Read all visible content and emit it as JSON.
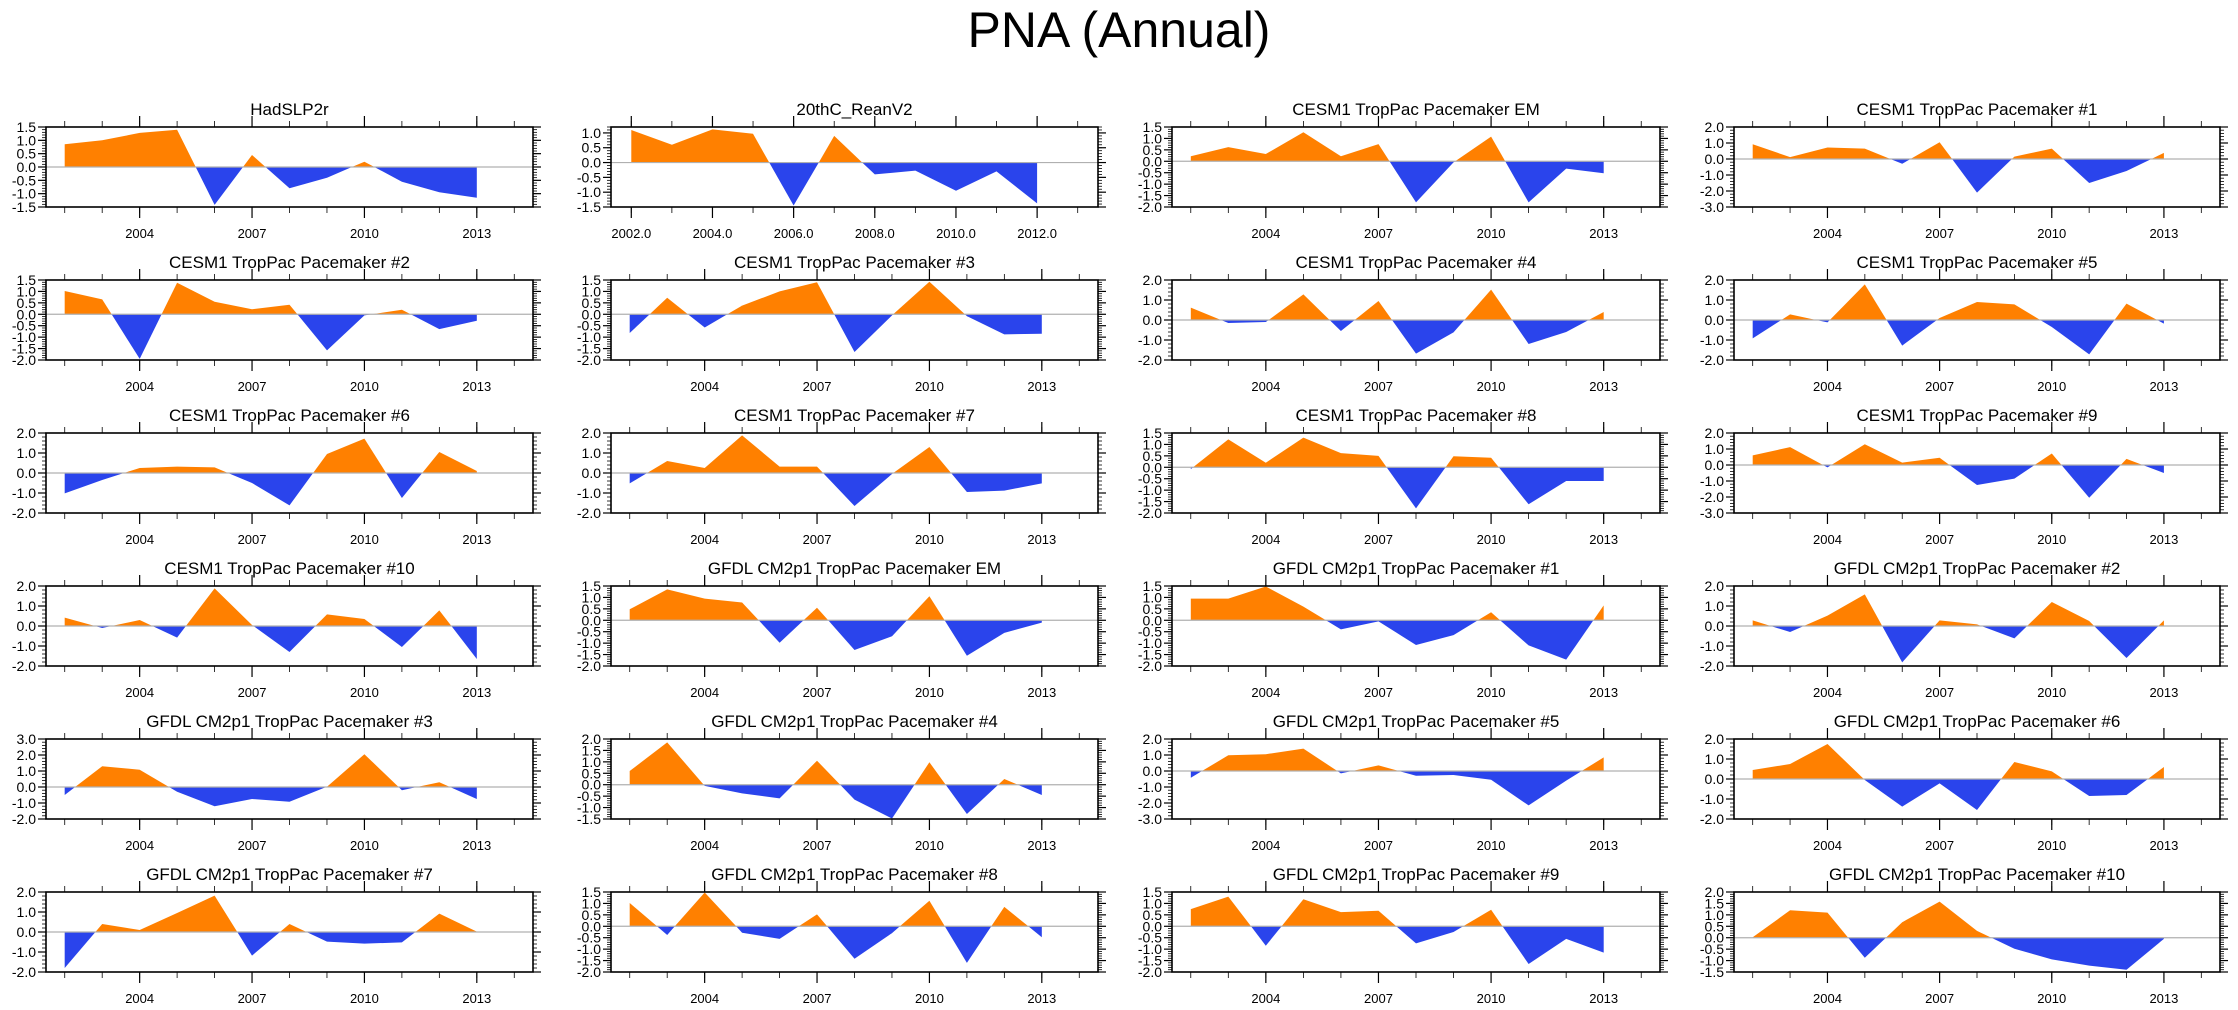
{
  "title": "PNA (Annual)",
  "colors": {
    "positive": "#ff8000",
    "negative": "#2a44ec",
    "zero_line": "#b0b0b0",
    "axis": "#000000"
  },
  "chart_data": [
    {
      "type": "area",
      "title": "HadSLP2r",
      "x": [
        2002,
        2003,
        2004,
        2005,
        2006,
        2007,
        2008,
        2009,
        2010,
        2011,
        2012,
        2013
      ],
      "values": [
        0.85,
        1.0,
        1.28,
        1.4,
        -1.42,
        0.45,
        -0.8,
        -0.4,
        0.2,
        -0.55,
        -0.95,
        -1.15
      ],
      "ylim": [
        -1.5,
        1.5
      ],
      "yticks": [
        "1.5",
        "1.0",
        "0.5",
        "0.0",
        "-0.5",
        "-1.0",
        "-1.5"
      ],
      "xlim": [
        2001.5,
        2014.5
      ],
      "xticks": [
        "2004",
        "2007",
        "2010",
        "2013"
      ]
    },
    {
      "type": "area",
      "title": "20thC_ReanV2",
      "x": [
        2002,
        2003,
        2004,
        2005,
        2006,
        2007,
        2008,
        2009,
        2010,
        2011,
        2012
      ],
      "values": [
        1.1,
        0.6,
        1.12,
        0.97,
        -1.45,
        0.9,
        -0.4,
        -0.27,
        -0.95,
        -0.3,
        -1.38
      ],
      "ylim": [
        -1.5,
        1.2
      ],
      "yticks": [
        "1.0",
        "0.5",
        "0.0",
        "-0.5",
        "-1.0",
        "-1.5"
      ],
      "xlim": [
        2001.5,
        2013.5
      ],
      "xticks": [
        "2002.0",
        "2004.0",
        "2006.0",
        "2008.0",
        "2010.0",
        "2012.0"
      ]
    },
    {
      "type": "area",
      "title": "CESM1 TropPac Pacemaker EM",
      "x": [
        2002,
        2003,
        2004,
        2005,
        2006,
        2007,
        2008,
        2009,
        2010,
        2011,
        2012,
        2013
      ],
      "values": [
        0.22,
        0.62,
        0.32,
        1.27,
        0.22,
        0.75,
        -1.8,
        -0.05,
        1.08,
        -1.8,
        -0.32,
        -0.52
      ],
      "ylim": [
        -2.0,
        1.5
      ],
      "yticks": [
        "1.5",
        "1.0",
        "0.5",
        "0.0",
        "-0.5",
        "-1.0",
        "-1.5",
        "-2.0"
      ],
      "xlim": [
        2001.5,
        2014.5
      ],
      "xticks": [
        "2004",
        "2007",
        "2010",
        "2013"
      ]
    },
    {
      "type": "area",
      "title": "CESM1 TropPac Pacemaker #1",
      "x": [
        2002,
        2003,
        2004,
        2005,
        2006,
        2007,
        2008,
        2009,
        2010,
        2011,
        2012,
        2013
      ],
      "values": [
        0.92,
        0.12,
        0.72,
        0.65,
        -0.3,
        1.05,
        -2.1,
        0.15,
        0.65,
        -1.5,
        -0.75,
        0.38
      ],
      "ylim": [
        -3.0,
        2.0
      ],
      "yticks": [
        "2.0",
        "1.0",
        "0.0",
        "-1.0",
        "-2.0",
        "-3.0"
      ],
      "xlim": [
        2001.5,
        2014.5
      ],
      "xticks": [
        "2004",
        "2007",
        "2010",
        "2013"
      ]
    },
    {
      "type": "area",
      "title": "CESM1 TropPac Pacemaker #2",
      "x": [
        2002,
        2003,
        2004,
        2005,
        2006,
        2007,
        2008,
        2009,
        2010,
        2011,
        2012,
        2013
      ],
      "values": [
        1.02,
        0.65,
        -1.95,
        1.38,
        0.55,
        0.22,
        0.42,
        -1.58,
        -0.05,
        0.2,
        -0.65,
        -0.28
      ],
      "ylim": [
        -2.0,
        1.5
      ],
      "yticks": [
        "1.5",
        "1.0",
        "0.5",
        "0.0",
        "-0.5",
        "-1.0",
        "-1.5",
        "-2.0"
      ],
      "xlim": [
        2001.5,
        2014.5
      ],
      "xticks": [
        "2004",
        "2007",
        "2010",
        "2013"
      ]
    },
    {
      "type": "area",
      "title": "CESM1 TropPac Pacemaker #3",
      "x": [
        2002,
        2003,
        2004,
        2005,
        2006,
        2007,
        2008,
        2009,
        2010,
        2011,
        2012,
        2013
      ],
      "values": [
        -0.82,
        0.72,
        -0.58,
        0.38,
        1.0,
        1.4,
        -1.65,
        -0.05,
        1.42,
        -0.08,
        -0.88,
        -0.85
      ],
      "ylim": [
        -2.0,
        1.5
      ],
      "yticks": [
        "1.5",
        "1.0",
        "0.5",
        "0.0",
        "-0.5",
        "-1.0",
        "-1.5",
        "-2.0"
      ],
      "xlim": [
        2001.5,
        2014.5
      ],
      "xticks": [
        "2004",
        "2007",
        "2010",
        "2013"
      ]
    },
    {
      "type": "area",
      "title": "CESM1 TropPac Pacemaker #4",
      "x": [
        2002,
        2003,
        2004,
        2005,
        2006,
        2007,
        2008,
        2009,
        2010,
        2011,
        2012,
        2013
      ],
      "values": [
        0.62,
        -0.15,
        -0.1,
        1.28,
        -0.55,
        0.95,
        -1.68,
        -0.62,
        1.52,
        -1.2,
        -0.6,
        0.4
      ],
      "ylim": [
        -2.0,
        2.0
      ],
      "yticks": [
        "2.0",
        "1.0",
        "0.0",
        "-1.0",
        "-2.0"
      ],
      "xlim": [
        2001.5,
        2014.5
      ],
      "xticks": [
        "2004",
        "2007",
        "2010",
        "2013"
      ]
    },
    {
      "type": "area",
      "title": "CESM1 TropPac Pacemaker #5",
      "x": [
        2002,
        2003,
        2004,
        2005,
        2006,
        2007,
        2008,
        2009,
        2010,
        2011,
        2012,
        2013
      ],
      "values": [
        -0.92,
        0.28,
        -0.12,
        1.78,
        -1.28,
        0.1,
        0.9,
        0.78,
        -0.35,
        -1.72,
        0.82,
        -0.18
      ],
      "ylim": [
        -2.0,
        2.0
      ],
      "yticks": [
        "2.0",
        "1.0",
        "0.0",
        "-1.0",
        "-2.0"
      ],
      "xlim": [
        2001.5,
        2014.5
      ],
      "xticks": [
        "2004",
        "2007",
        "2010",
        "2013"
      ]
    },
    {
      "type": "area",
      "title": "CESM1 TropPac Pacemaker #6",
      "x": [
        2002,
        2003,
        2004,
        2005,
        2006,
        2007,
        2008,
        2009,
        2010,
        2011,
        2012,
        2013
      ],
      "values": [
        -1.02,
        -0.35,
        0.25,
        0.32,
        0.28,
        -0.5,
        -1.62,
        0.95,
        1.72,
        -1.25,
        1.05,
        0.1
      ],
      "ylim": [
        -2.0,
        2.0
      ],
      "yticks": [
        "2.0",
        "1.0",
        "0.0",
        "-1.0",
        "-2.0"
      ],
      "xlim": [
        2001.5,
        2014.5
      ],
      "xticks": [
        "2004",
        "2007",
        "2010",
        "2013"
      ]
    },
    {
      "type": "area",
      "title": "CESM1 TropPac Pacemaker #7",
      "x": [
        2002,
        2003,
        2004,
        2005,
        2006,
        2007,
        2008,
        2009,
        2010,
        2011,
        2012,
        2013
      ],
      "values": [
        -0.52,
        0.6,
        0.25,
        1.88,
        0.32,
        0.32,
        -1.65,
        -0.05,
        1.3,
        -0.95,
        -0.88,
        -0.52
      ],
      "ylim": [
        -2.0,
        2.0
      ],
      "yticks": [
        "2.0",
        "1.0",
        "0.0",
        "-1.0",
        "-2.0"
      ],
      "xlim": [
        2001.5,
        2014.5
      ],
      "xticks": [
        "2004",
        "2007",
        "2010",
        "2013"
      ]
    },
    {
      "type": "area",
      "title": "CESM1 TropPac Pacemaker #8",
      "x": [
        2002,
        2003,
        2004,
        2005,
        2006,
        2007,
        2008,
        2009,
        2010,
        2011,
        2012,
        2013
      ],
      "values": [
        -0.08,
        1.22,
        0.2,
        1.3,
        0.62,
        0.5,
        -1.8,
        0.48,
        0.42,
        -1.62,
        -0.6,
        -0.6
      ],
      "ylim": [
        -2.0,
        1.5
      ],
      "yticks": [
        "1.5",
        "1.0",
        "0.5",
        "0.0",
        "-0.5",
        "-1.0",
        "-1.5",
        "-2.0"
      ],
      "xlim": [
        2001.5,
        2014.5
      ],
      "xticks": [
        "2004",
        "2007",
        "2010",
        "2013"
      ]
    },
    {
      "type": "area",
      "title": "CESM1 TropPac Pacemaker #9",
      "x": [
        2002,
        2003,
        2004,
        2005,
        2006,
        2007,
        2008,
        2009,
        2010,
        2011,
        2012,
        2013
      ],
      "values": [
        0.6,
        1.12,
        -0.15,
        1.3,
        0.15,
        0.45,
        -1.25,
        -0.85,
        0.72,
        -2.05,
        0.38,
        -0.5
      ],
      "ylim": [
        -3.0,
        2.0
      ],
      "yticks": [
        "2.0",
        "1.0",
        "0.0",
        "-1.0",
        "-2.0",
        "-3.0"
      ],
      "xlim": [
        2001.5,
        2014.5
      ],
      "xticks": [
        "2004",
        "2007",
        "2010",
        "2013"
      ]
    },
    {
      "type": "area",
      "title": "CESM1 TropPac Pacemaker #10",
      "x": [
        2002,
        2003,
        2004,
        2005,
        2006,
        2007,
        2008,
        2009,
        2010,
        2011,
        2012,
        2013
      ],
      "values": [
        0.42,
        -0.1,
        0.3,
        -0.58,
        1.88,
        0.05,
        -1.3,
        0.58,
        0.35,
        -1.05,
        0.78,
        -1.65
      ],
      "ylim": [
        -2.0,
        2.0
      ],
      "yticks": [
        "2.0",
        "1.0",
        "0.0",
        "-1.0",
        "-2.0"
      ],
      "xlim": [
        2001.5,
        2014.5
      ],
      "xticks": [
        "2004",
        "2007",
        "2010",
        "2013"
      ]
    },
    {
      "type": "area",
      "title": "GFDL CM2p1 TropPac Pacemaker EM",
      "x": [
        2002,
        2003,
        2004,
        2005,
        2006,
        2007,
        2008,
        2009,
        2010,
        2011,
        2012,
        2013
      ],
      "values": [
        0.48,
        1.35,
        0.95,
        0.78,
        -0.98,
        0.55,
        -1.3,
        -0.7,
        1.05,
        -1.55,
        -0.55,
        -0.1
      ],
      "ylim": [
        -2.0,
        1.5
      ],
      "yticks": [
        "1.5",
        "1.0",
        "0.5",
        "0.0",
        "-0.5",
        "-1.0",
        "-1.5",
        "-2.0"
      ],
      "xlim": [
        2001.5,
        2014.5
      ],
      "xticks": [
        "2004",
        "2007",
        "2010",
        "2013"
      ]
    },
    {
      "type": "area",
      "title": "GFDL CM2p1 TropPac Pacemaker #1",
      "x": [
        2002,
        2003,
        2004,
        2005,
        2006,
        2007,
        2008,
        2009,
        2010,
        2011,
        2012,
        2013
      ],
      "values": [
        0.95,
        0.95,
        1.48,
        0.6,
        -0.4,
        -0.05,
        -1.08,
        -0.65,
        0.35,
        -1.1,
        -1.72,
        0.65
      ],
      "ylim": [
        -2.0,
        1.5
      ],
      "yticks": [
        "1.5",
        "1.0",
        "0.5",
        "0.0",
        "-0.5",
        "-1.0",
        "-1.5",
        "-2.0"
      ],
      "xlim": [
        2001.5,
        2014.5
      ],
      "xticks": [
        "2004",
        "2007",
        "2010",
        "2013"
      ]
    },
    {
      "type": "area",
      "title": "GFDL CM2p1 TropPac Pacemaker #2",
      "x": [
        2002,
        2003,
        2004,
        2005,
        2006,
        2007,
        2008,
        2009,
        2010,
        2011,
        2012,
        2013
      ],
      "values": [
        0.28,
        -0.3,
        0.52,
        1.58,
        -1.82,
        0.28,
        0.08,
        -0.62,
        1.2,
        0.25,
        -1.6,
        0.28
      ],
      "ylim": [
        -2.0,
        2.0
      ],
      "yticks": [
        "2.0",
        "1.0",
        "0.0",
        "-1.0",
        "-2.0"
      ],
      "xlim": [
        2001.5,
        2014.5
      ],
      "xticks": [
        "2004",
        "2007",
        "2010",
        "2013"
      ]
    },
    {
      "type": "area",
      "title": "GFDL CM2p1 TropPac Pacemaker #3",
      "x": [
        2002,
        2003,
        2004,
        2005,
        2006,
        2007,
        2008,
        2009,
        2010,
        2011,
        2012,
        2013
      ],
      "values": [
        -0.5,
        1.3,
        1.08,
        -0.3,
        -1.2,
        -0.75,
        -0.92,
        0.02,
        2.05,
        -0.2,
        0.3,
        -0.75
      ],
      "ylim": [
        -2.0,
        3.0
      ],
      "yticks": [
        "3.0",
        "2.0",
        "1.0",
        "0.0",
        "-1.0",
        "-2.0"
      ],
      "xlim": [
        2001.5,
        2014.5
      ],
      "xticks": [
        "2004",
        "2007",
        "2010",
        "2013"
      ]
    },
    {
      "type": "area",
      "title": "GFDL CM2p1 TropPac Pacemaker #4",
      "x": [
        2002,
        2003,
        2004,
        2005,
        2006,
        2007,
        2008,
        2009,
        2010,
        2011,
        2012,
        2013
      ],
      "values": [
        0.6,
        1.85,
        -0.05,
        -0.38,
        -0.6,
        1.05,
        -0.65,
        -1.48,
        0.98,
        -1.28,
        0.25,
        -0.45
      ],
      "ylim": [
        -1.5,
        2.0
      ],
      "yticks": [
        "2.0",
        "1.5",
        "1.0",
        "0.5",
        "0.0",
        "-0.5",
        "-1.0",
        "-1.5"
      ],
      "xlim": [
        2001.5,
        2014.5
      ],
      "xticks": [
        "2004",
        "2007",
        "2010",
        "2013"
      ]
    },
    {
      "type": "area",
      "title": "GFDL CM2p1 TropPac Pacemaker #5",
      "x": [
        2002,
        2003,
        2004,
        2005,
        2006,
        2007,
        2008,
        2009,
        2010,
        2011,
        2012,
        2013
      ],
      "values": [
        -0.42,
        0.98,
        1.05,
        1.4,
        -0.15,
        0.35,
        -0.3,
        -0.25,
        -0.55,
        -2.15,
        -0.6,
        0.85
      ],
      "ylim": [
        -3.0,
        2.0
      ],
      "yticks": [
        "2.0",
        "1.0",
        "0.0",
        "-1.0",
        "-2.0",
        "-3.0"
      ],
      "xlim": [
        2001.5,
        2014.5
      ],
      "xticks": [
        "2004",
        "2007",
        "2010",
        "2013"
      ]
    },
    {
      "type": "area",
      "title": "GFDL CM2p1 TropPac Pacemaker #6",
      "x": [
        2002,
        2003,
        2004,
        2005,
        2006,
        2007,
        2008,
        2009,
        2010,
        2011,
        2012,
        2013
      ],
      "values": [
        0.45,
        0.75,
        1.75,
        -0.05,
        -1.38,
        -0.22,
        -1.55,
        0.85,
        0.38,
        -0.85,
        -0.8,
        0.6
      ],
      "ylim": [
        -2.0,
        2.0
      ],
      "yticks": [
        "2.0",
        "1.0",
        "0.0",
        "-1.0",
        "-2.0"
      ],
      "xlim": [
        2001.5,
        2014.5
      ],
      "xticks": [
        "2004",
        "2007",
        "2010",
        "2013"
      ]
    },
    {
      "type": "area",
      "title": "GFDL CM2p1 TropPac Pacemaker #7",
      "x": [
        2002,
        2003,
        2004,
        2005,
        2006,
        2007,
        2008,
        2009,
        2010,
        2011,
        2012,
        2013
      ],
      "values": [
        -1.8,
        0.4,
        0.1,
        0.95,
        1.82,
        -1.18,
        0.4,
        -0.48,
        -0.58,
        -0.52,
        0.92,
        0.02
      ],
      "ylim": [
        -2.0,
        2.0
      ],
      "yticks": [
        "2.0",
        "1.0",
        "0.0",
        "-1.0",
        "-2.0"
      ],
      "xlim": [
        2001.5,
        2014.5
      ],
      "xticks": [
        "2004",
        "2007",
        "2010",
        "2013"
      ]
    },
    {
      "type": "area",
      "title": "GFDL CM2p1 TropPac Pacemaker #8",
      "x": [
        2002,
        2003,
        2004,
        2005,
        2006,
        2007,
        2008,
        2009,
        2010,
        2011,
        2012,
        2013
      ],
      "values": [
        1.02,
        -0.38,
        1.48,
        -0.28,
        -0.55,
        0.52,
        -1.42,
        -0.3,
        1.12,
        -1.6,
        0.85,
        -0.48
      ],
      "ylim": [
        -2.0,
        1.5
      ],
      "yticks": [
        "1.5",
        "1.0",
        "0.5",
        "0.0",
        "-0.5",
        "-1.0",
        "-1.5",
        "-2.0"
      ],
      "xlim": [
        2001.5,
        2014.5
      ],
      "xticks": [
        "2004",
        "2007",
        "2010",
        "2013"
      ]
    },
    {
      "type": "area",
      "title": "GFDL CM2p1 TropPac Pacemaker #9",
      "x": [
        2002,
        2003,
        2004,
        2005,
        2006,
        2007,
        2008,
        2009,
        2010,
        2011,
        2012,
        2013
      ],
      "values": [
        0.75,
        1.3,
        -0.85,
        1.18,
        0.62,
        0.68,
        -0.75,
        -0.25,
        0.72,
        -1.65,
        -0.55,
        -1.15
      ],
      "ylim": [
        -2.0,
        1.5
      ],
      "yticks": [
        "1.5",
        "1.0",
        "0.5",
        "0.0",
        "-0.5",
        "-1.0",
        "-1.5",
        "-2.0"
      ],
      "xlim": [
        2001.5,
        2014.5
      ],
      "xticks": [
        "2004",
        "2007",
        "2010",
        "2013"
      ]
    },
    {
      "type": "area",
      "title": "GFDL CM2p1 TropPac Pacemaker #10",
      "x": [
        2002,
        2003,
        2004,
        2005,
        2006,
        2007,
        2008,
        2009,
        2010,
        2011,
        2012,
        2013
      ],
      "values": [
        0.02,
        1.2,
        1.1,
        -0.88,
        0.68,
        1.58,
        0.3,
        -0.48,
        -0.95,
        -1.22,
        -1.4,
        -0.05
      ],
      "ylim": [
        -1.5,
        2.0
      ],
      "yticks": [
        "2.0",
        "1.5",
        "1.0",
        "0.5",
        "0.0",
        "-0.5",
        "-1.0",
        "-1.5"
      ],
      "xlim": [
        2001.5,
        2014.5
      ],
      "xticks": [
        "2004",
        "2007",
        "2010",
        "2013"
      ]
    }
  ]
}
